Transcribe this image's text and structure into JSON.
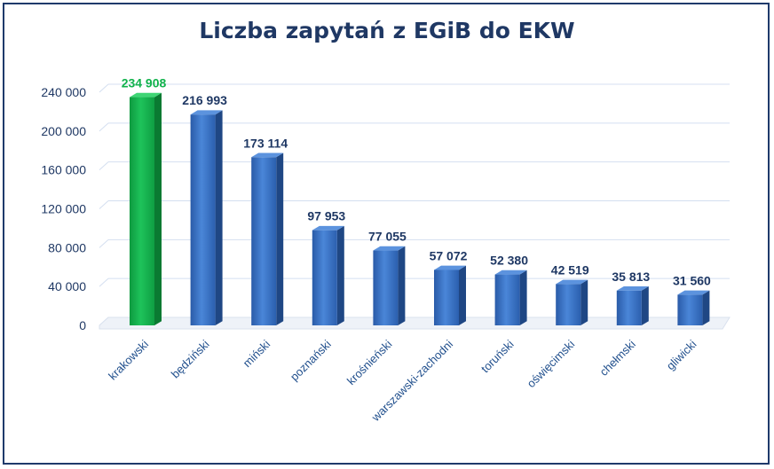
{
  "chart_data": {
    "type": "bar",
    "title": "Liczba zapytań z EGiB do EKW",
    "xlabel": "",
    "ylabel": "",
    "categories": [
      "krakowski",
      "będziński",
      "miński",
      "poznański",
      "krośnieński",
      "warszawski-zachodni",
      "toruński",
      "oświęcimski",
      "chełmski",
      "gliwicki"
    ],
    "values": [
      234908,
      216993,
      173114,
      97953,
      77055,
      57072,
      52380,
      42519,
      35813,
      31560
    ],
    "value_labels": [
      "234 908",
      "216 993",
      "173 114",
      "97 953",
      "77 055",
      "57 072",
      "52 380",
      "42 519",
      "35 813",
      "31 560"
    ],
    "y_ticks": [
      0,
      40000,
      80000,
      120000,
      160000,
      200000,
      240000
    ],
    "y_tick_labels": [
      "0",
      "40 000",
      "80 000",
      "120 000",
      "160 000",
      "200 000",
      "240 000"
    ],
    "ylim": [
      0,
      240000
    ],
    "grid": true,
    "highlight_index": 0,
    "colors": {
      "bar": "#3a72c4",
      "bar_highlight": "#10b24b",
      "label": "#1f3864",
      "label_highlight": "#10b24b",
      "grid": "#d4dff0",
      "title": "#1f3864"
    }
  }
}
